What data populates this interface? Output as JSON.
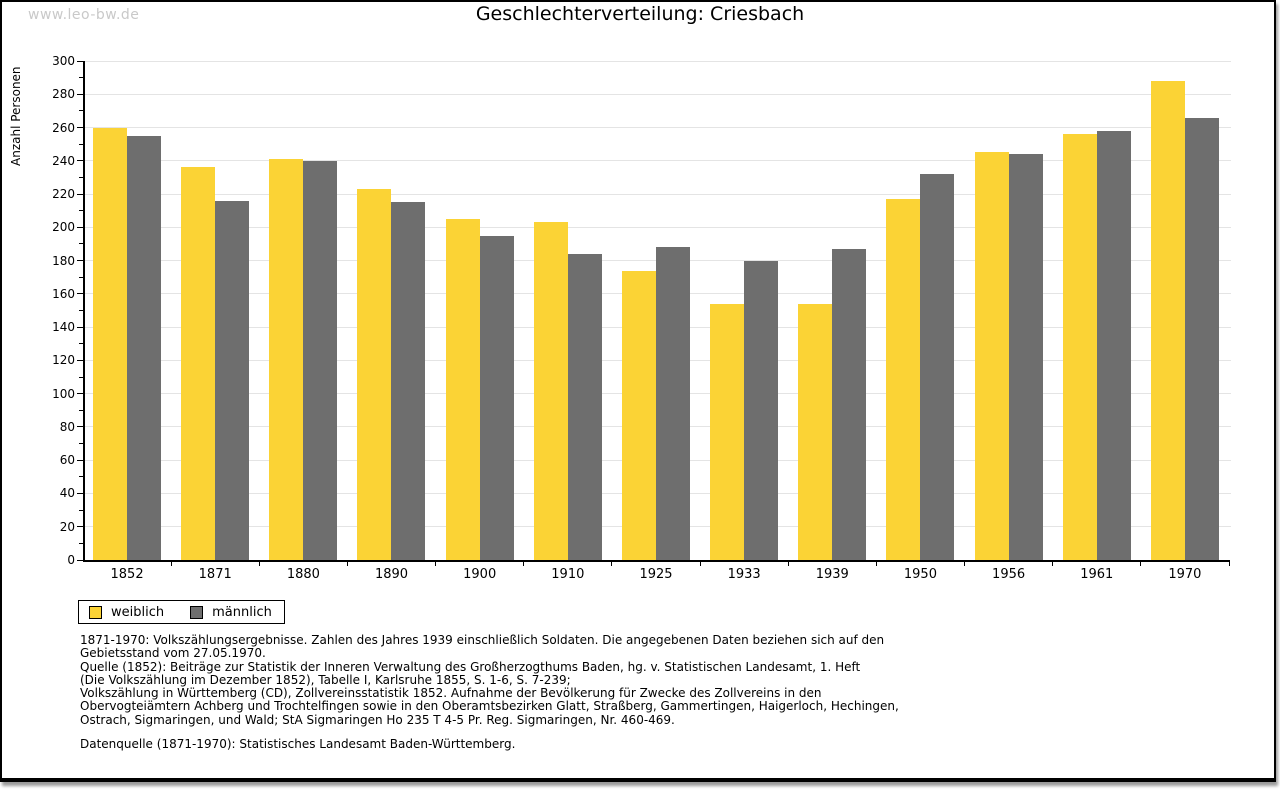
{
  "watermark": "www.leo-bw.de",
  "title": "Geschlechterverteilung: Criesbach",
  "chart_data": {
    "type": "bar",
    "title": "Geschlechterverteilung: Criesbach",
    "xlabel": "",
    "ylabel": "Anzahl Personen",
    "ylim": [
      0,
      300
    ],
    "ytick_step": 20,
    "yminor_step": 10,
    "grid": true,
    "legend_position": "bottom-left",
    "categories": [
      "1852",
      "1871",
      "1880",
      "1890",
      "1900",
      "1910",
      "1925",
      "1933",
      "1939",
      "1950",
      "1956",
      "1961",
      "1970"
    ],
    "series": [
      {
        "name": "weiblich",
        "color": "#fbd335",
        "values": [
          260,
          236,
          241,
          223,
          205,
          203,
          174,
          154,
          154,
          217,
          245,
          256,
          288
        ]
      },
      {
        "name": "männlich",
        "color": "#6e6e6e",
        "values": [
          255,
          216,
          240,
          215,
          195,
          184,
          188,
          180,
          187,
          232,
          244,
          258,
          266
        ]
      }
    ]
  },
  "colors": {
    "female_bar": "#fbd335",
    "male_bar": "#6e6e6e",
    "gridline": "#e4e4e4",
    "axis": "#000000",
    "watermark": "#c9c9c9"
  },
  "footnotes": [
    "1871-1970: Volkszählungsergebnisse. Zahlen des Jahres 1939 einschließlich Soldaten. Die angegebenen Daten beziehen sich auf den",
    "Gebietsstand vom 27.05.1970.",
    "Quelle (1852): Beiträge zur Statistik der Inneren Verwaltung des Großherzogthums Baden, hg. v. Statistischen Landesamt, 1. Heft",
    "(Die Volkszählung im Dezember 1852), Tabelle I, Karlsruhe 1855, S. 1-6, S. 7-239;",
    "Volkszählung in Württemberg (CD), Zollvereinsstatistik 1852. Aufnahme der Bevölkerung für Zwecke des Zollvereins in den",
    "Obervogteiämtern Achberg und Trochtelfingen sowie in den Oberamtsbezirken Glatt, Straßberg, Gammertingen, Haigerloch, Hechingen,",
    "Ostrach, Sigmaringen, und Wald; StA Sigmaringen Ho 235 T 4-5 Pr. Reg. Sigmaringen, Nr. 460-469."
  ],
  "source_line": "Datenquelle (1871-1970): Statistisches Landesamt Baden-Württemberg."
}
